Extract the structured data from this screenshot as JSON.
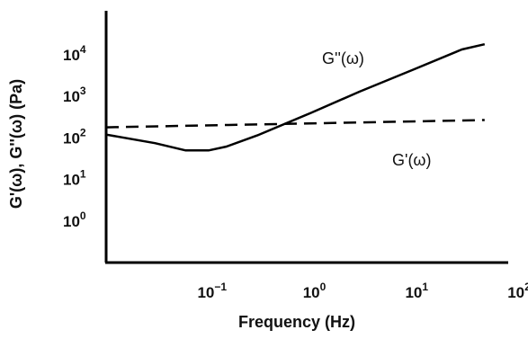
{
  "chart_data": {
    "type": "line",
    "xlabel": "Frequency (Hz)",
    "ylabel": "G'(ω), G''(ω)  (Pa)",
    "x_scale": "log",
    "y_scale": "log",
    "xlim": [
      0.01,
      100
    ],
    "ylim": [
      0.1,
      100000
    ],
    "x_ticks": [
      {
        "value": 0.1,
        "base": "10",
        "exp": "−1"
      },
      {
        "value": 1,
        "base": "10",
        "exp": "0"
      },
      {
        "value": 10,
        "base": "10",
        "exp": "1"
      },
      {
        "value": 100,
        "base": "10",
        "exp": "2"
      }
    ],
    "y_ticks": [
      {
        "value": 1,
        "base": "10",
        "exp": "0"
      },
      {
        "value": 10,
        "base": "10",
        "exp": "1"
      },
      {
        "value": 100,
        "base": "10",
        "exp": "2"
      },
      {
        "value": 1000,
        "base": "10",
        "exp": "3"
      },
      {
        "value": 10000,
        "base": "10",
        "exp": "4"
      }
    ],
    "grid": false,
    "series": [
      {
        "name": "G''(ω)",
        "style": "solid",
        "color": "#000000",
        "x": [
          0.01,
          0.03,
          0.06,
          0.1,
          0.15,
          0.3,
          1,
          3,
          10,
          30,
          50
        ],
        "y": [
          120,
          75,
          50,
          50,
          62,
          115,
          400,
          1300,
          4400,
          13500,
          18000
        ]
      },
      {
        "name": "G'(ω)",
        "style": "dashed",
        "color": "#000000",
        "x": [
          0.01,
          50
        ],
        "y": [
          180,
          270
        ]
      }
    ]
  }
}
